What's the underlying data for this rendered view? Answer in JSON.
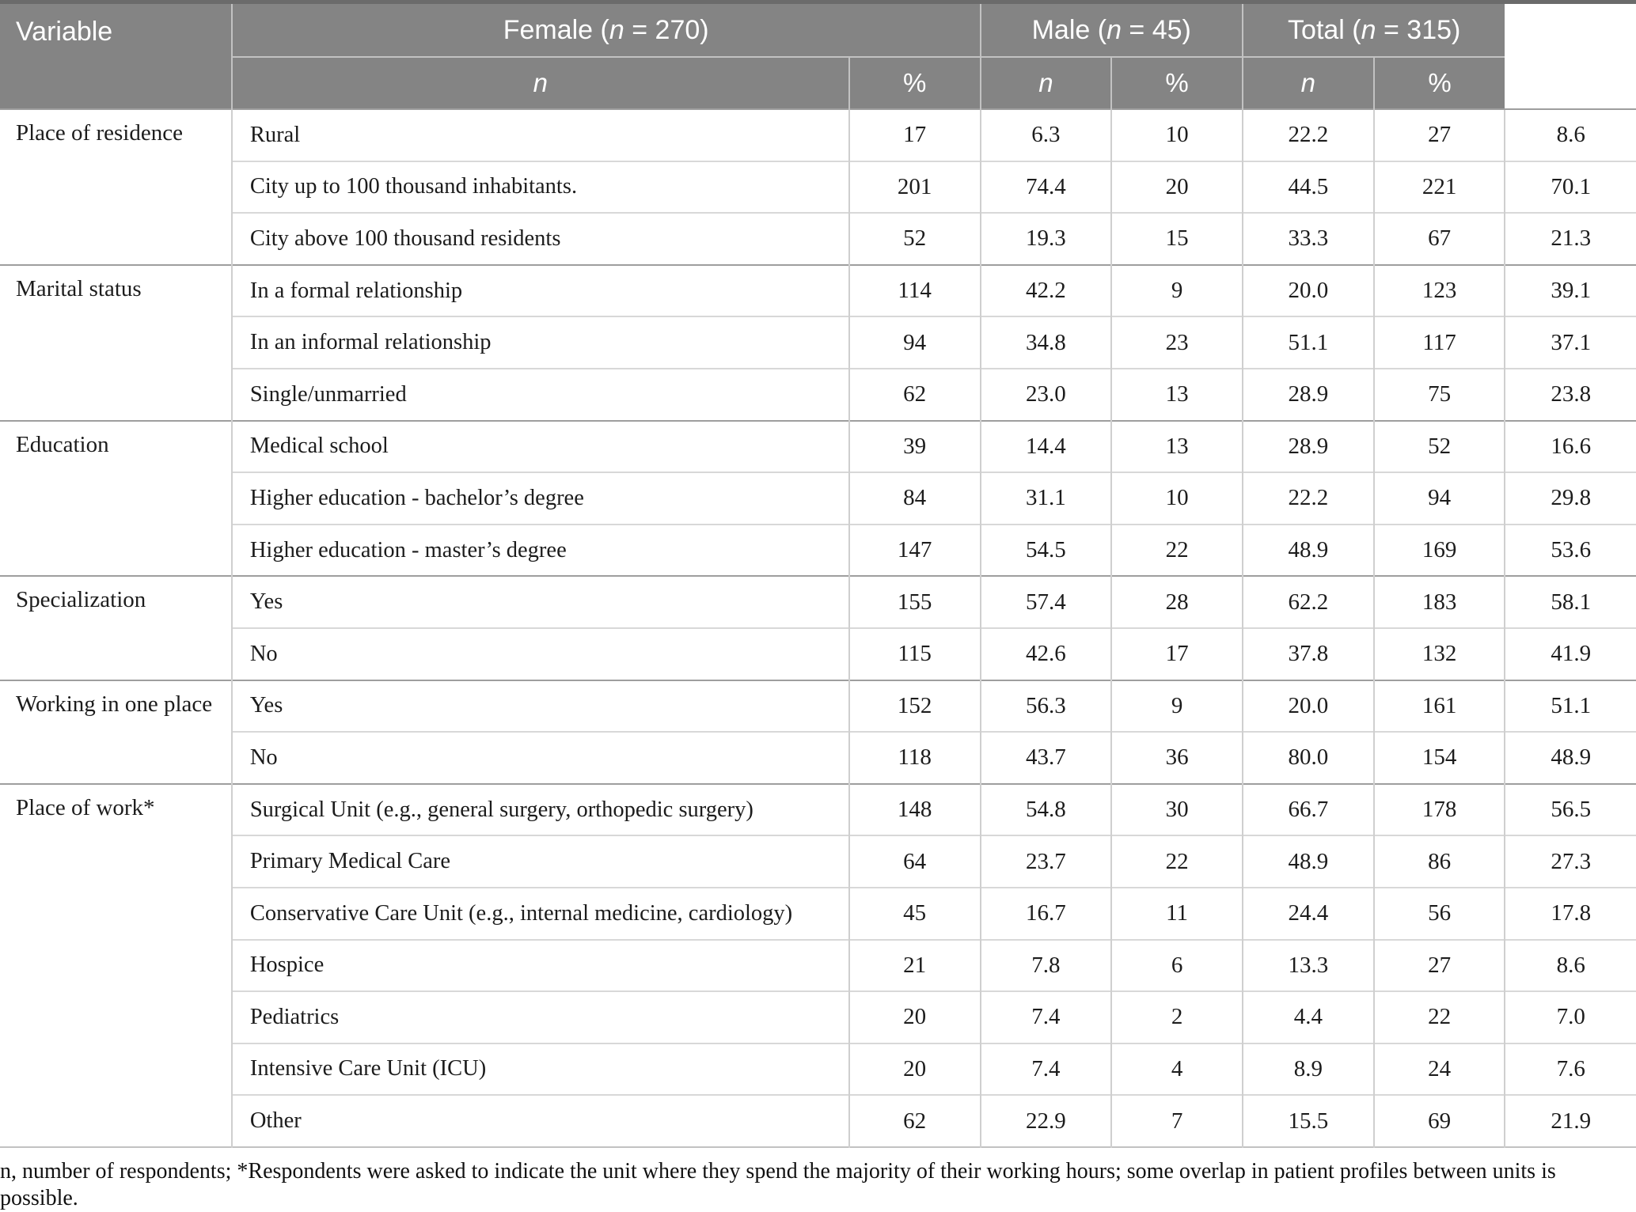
{
  "colors": {
    "header_bg": "#848484",
    "header_text": "#ffffff",
    "header_line": "#c2c2c2",
    "top_border": "#6b6b6b",
    "group_line": "#9e9e9e",
    "row_line": "#d8d8d8",
    "column_line": "#cfcfcf",
    "body_text": "#1c1c1c"
  },
  "table": {
    "header": {
      "variable": "Variable",
      "female": {
        "pre": "Female (",
        "n": "n",
        "post": " = 270)"
      },
      "male": {
        "pre": "Male (",
        "n": "n",
        "post": " = 45)"
      },
      "total": {
        "pre": "Total (",
        "n": "n",
        "post": " = 315)"
      },
      "subs": [
        "n",
        "%",
        "n",
        "%",
        "n",
        "%"
      ]
    },
    "groups": [
      {
        "variable": "Place of residence",
        "rows": [
          {
            "label": "Rural",
            "values": [
              "17",
              "6.3",
              "10",
              "22.2",
              "27",
              "8.6"
            ]
          },
          {
            "label": "City up to 100 thousand inhabitants.",
            "values": [
              "201",
              "74.4",
              "20",
              "44.5",
              "221",
              "70.1"
            ]
          },
          {
            "label": "City above 100 thousand residents",
            "values": [
              "52",
              "19.3",
              "15",
              "33.3",
              "67",
              "21.3"
            ]
          }
        ]
      },
      {
        "variable": "Marital status",
        "rows": [
          {
            "label": "In a formal relationship",
            "values": [
              "114",
              "42.2",
              "9",
              "20.0",
              "123",
              "39.1"
            ]
          },
          {
            "label": "In an informal relationship",
            "values": [
              "94",
              "34.8",
              "23",
              "51.1",
              "117",
              "37.1"
            ]
          },
          {
            "label": "Single/unmarried",
            "values": [
              "62",
              "23.0",
              "13",
              "28.9",
              "75",
              "23.8"
            ]
          }
        ]
      },
      {
        "variable": "Education",
        "rows": [
          {
            "label": "Medical school",
            "values": [
              "39",
              "14.4",
              "13",
              "28.9",
              "52",
              "16.6"
            ]
          },
          {
            "label": "Higher education - bachelor’s degree",
            "values": [
              "84",
              "31.1",
              "10",
              "22.2",
              "94",
              "29.8"
            ]
          },
          {
            "label": "Higher education - master’s degree",
            "values": [
              "147",
              "54.5",
              "22",
              "48.9",
              "169",
              "53.6"
            ]
          }
        ]
      },
      {
        "variable": "Specialization",
        "rows": [
          {
            "label": "Yes",
            "values": [
              "155",
              "57.4",
              "28",
              "62.2",
              "183",
              "58.1"
            ]
          },
          {
            "label": "No",
            "values": [
              "115",
              "42.6",
              "17",
              "37.8",
              "132",
              "41.9"
            ]
          }
        ]
      },
      {
        "variable": "Working in one place",
        "rows": [
          {
            "label": "Yes",
            "values": [
              "152",
              "56.3",
              "9",
              "20.0",
              "161",
              "51.1"
            ]
          },
          {
            "label": "No",
            "values": [
              "118",
              "43.7",
              "36",
              "80.0",
              "154",
              "48.9"
            ]
          }
        ]
      },
      {
        "variable": "Place of work*",
        "rows": [
          {
            "label": "Surgical Unit (e.g., general surgery, orthopedic surgery)",
            "values": [
              "148",
              "54.8",
              "30",
              "66.7",
              "178",
              "56.5"
            ]
          },
          {
            "label": "Primary Medical Care",
            "values": [
              "64",
              "23.7",
              "22",
              "48.9",
              "86",
              "27.3"
            ]
          },
          {
            "label": "Conservative Care Unit (e.g., internal medicine, cardiology)",
            "values": [
              "45",
              "16.7",
              "11",
              "24.4",
              "56",
              "17.8"
            ]
          },
          {
            "label": "Hospice",
            "values": [
              "21",
              "7.8",
              "6",
              "13.3",
              "27",
              "8.6"
            ]
          },
          {
            "label": "Pediatrics",
            "values": [
              "20",
              "7.4",
              "2",
              "4.4",
              "22",
              "7.0"
            ]
          },
          {
            "label": "Intensive Care Unit (ICU)",
            "values": [
              "20",
              "7.4",
              "4",
              "8.9",
              "24",
              "7.6"
            ]
          },
          {
            "label": "Other",
            "values": [
              "62",
              "22.9",
              "7",
              "15.5",
              "69",
              "21.9"
            ]
          }
        ]
      }
    ],
    "footnote": "n, number of respondents; *Respondents were asked to indicate the unit where they spend the majority of their working hours; some overlap in patient profiles between units is possible."
  }
}
